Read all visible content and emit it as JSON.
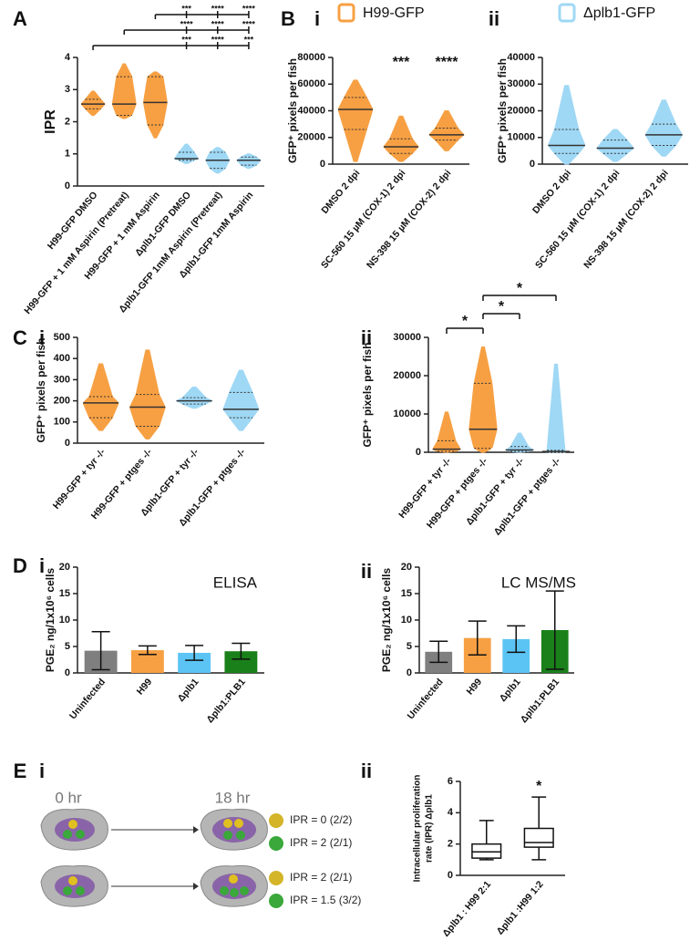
{
  "panel_labels": [
    "A",
    "B",
    "i",
    "ii",
    "C",
    "i",
    "ii",
    "D",
    "i",
    "ii",
    "E",
    "i",
    "ii"
  ],
  "diagram": {
    "times": [
      "0 hr",
      "18 hr"
    ],
    "outcomes": [
      "IPR = 0 (2/2)",
      "IPR = 2 (2/1)",
      "IPR = 2 (2/1)",
      "IPR = 1.5 (3/2)"
    ]
  },
  "chart_data": [
    {
      "type": "violin",
      "ylabel": "IPR",
      "categories": [
        "H99-GFP DMSO",
        "H99-GFP + 1 mM Aspirin (Pretreat)",
        "H99-GFP + 1 mM Aspirin",
        "Δplb1-GFP DMSO",
        "Δplb1-GFP 1mM Aspirin (Pretreat)",
        "Δplb1-GFP 1mM Aspirin"
      ],
      "colors": [
        "#f7a043",
        "#f7a043",
        "#f7a043",
        "#9fd8f5",
        "#9fd8f5",
        "#9fd8f5"
      ],
      "min": [
        2.2,
        2.1,
        1.5,
        0.7,
        0.4,
        0.55
      ],
      "q1": [
        2.4,
        2.2,
        1.9,
        0.8,
        0.55,
        0.65
      ],
      "median": [
        2.55,
        2.55,
        2.6,
        0.85,
        0.8,
        0.8
      ],
      "q3": [
        2.7,
        3.4,
        3.4,
        1.05,
        1.05,
        0.9
      ],
      "max": [
        2.95,
        3.8,
        3.55,
        1.3,
        1.2,
        1.0
      ],
      "ylim": [
        0,
        4
      ],
      "yticks": [
        0,
        1,
        2,
        3,
        4
      ],
      "annotations": [
        [
          "***",
          "****",
          "****"
        ],
        [
          "****",
          "****",
          "****"
        ],
        [
          "***",
          "****",
          "***"
        ]
      ]
    },
    {
      "type": "violin",
      "title": "H99-GFP",
      "ylabel": "GFP⁺ pixels per fish",
      "categories": [
        "DMSO 2 dpi",
        "SC-560 15 µM (COX-1) 2 dpi",
        "NS-398 15 µM (COX-2) 2 dpi"
      ],
      "colors": [
        "#f7a043",
        "#f7a043",
        "#f7a043"
      ],
      "min": [
        2000,
        2000,
        10000
      ],
      "q1": [
        26000,
        8000,
        18000
      ],
      "median": [
        41000,
        13000,
        22000
      ],
      "q3": [
        50000,
        19000,
        27000
      ],
      "max": [
        63000,
        36000,
        40000
      ],
      "ylim": [
        0,
        80000
      ],
      "yticks": [
        0,
        20000,
        40000,
        60000,
        80000
      ],
      "annotations": [
        null,
        "***",
        "****"
      ]
    },
    {
      "type": "violin",
      "title": "Δplb1-GFP",
      "ylabel": "GFP⁺ pixels per fish",
      "categories": [
        "DMSO 2 dpi",
        "SC-560 15 µM (COX-1) 2 dpi",
        "NS-398 15 µM (COX-2) 2 dpi"
      ],
      "colors": [
        "#9fd8f5",
        "#9fd8f5",
        "#9fd8f5"
      ],
      "min": [
        0,
        1000,
        3000
      ],
      "q1": [
        4000,
        4000,
        7000
      ],
      "median": [
        7000,
        6000,
        11000
      ],
      "q3": [
        13000,
        9000,
        15000
      ],
      "max": [
        29500,
        13000,
        24000
      ],
      "ylim": [
        0,
        40000
      ],
      "yticks": [
        0,
        10000,
        20000,
        30000,
        40000
      ]
    },
    {
      "type": "violin",
      "ylabel": "GFP⁺ pixels per fish",
      "categories": [
        "H99-GFP + tyr -/-",
        "H99-GFP + ptges -/-",
        "Δplb1-GFP + tyr -/-",
        "Δplb1-GFP +  ptges -/-"
      ],
      "colors": [
        "#f7a043",
        "#f7a043",
        "#9fd8f5",
        "#9fd8f5"
      ],
      "min": [
        60,
        20,
        165,
        60
      ],
      "q1": [
        120,
        80,
        185,
        120
      ],
      "median": [
        190,
        170,
        200,
        160
      ],
      "q3": [
        220,
        230,
        215,
        240
      ],
      "max": [
        375,
        440,
        265,
        345
      ],
      "ylim": [
        0,
        500
      ],
      "yticks": [
        0,
        100,
        200,
        300,
        400,
        500
      ]
    },
    {
      "type": "violin",
      "ylabel": "GFP⁺ pixels per fish",
      "categories": [
        "H99-GFP + tyr -/-",
        "H99-GFP + ptges -/-",
        "Δplb1-GFP + tyr -/-",
        "Δplb1-GFP + ptges -/-"
      ],
      "colors": [
        "#f7a043",
        "#f7a043",
        "#9fd8f5",
        "#9fd8f5"
      ],
      "min": [
        0,
        0,
        0,
        0
      ],
      "q1": [
        200,
        1000,
        200,
        0
      ],
      "median": [
        800,
        6000,
        600,
        200
      ],
      "q3": [
        3000,
        18000,
        1500,
        500
      ],
      "max": [
        10500,
        27500,
        5000,
        23000
      ],
      "ylim": [
        0,
        30000
      ],
      "yticks": [
        0,
        10000,
        20000,
        30000
      ],
      "annotations": [
        "*",
        "*",
        "*"
      ]
    },
    {
      "type": "bar",
      "title": "ELISA",
      "ylabel": "PGE₂ ng/1x10⁶ cells",
      "categories": [
        "Uninfected",
        "H99",
        "Δplb1",
        "Δplb1:PLB1"
      ],
      "colors": [
        "#7f7f7f",
        "#f7a043",
        "#5bc4f5",
        "#1a801a"
      ],
      "values": [
        4.2,
        4.3,
        3.8,
        4.1
      ],
      "errors": [
        3.6,
        0.8,
        1.4,
        1.5
      ],
      "ylim": [
        0,
        20
      ],
      "yticks": [
        0,
        5,
        10,
        15,
        20
      ]
    },
    {
      "type": "bar",
      "title": "LC MS/MS",
      "ylabel": "PGE₂ ng/1x10⁶ cells",
      "categories": [
        "Uninfected",
        "H99",
        "Δplb1",
        "Δplb1:PLB1"
      ],
      "colors": [
        "#7f7f7f",
        "#f7a043",
        "#5bc4f5",
        "#1a801a"
      ],
      "values": [
        4.0,
        6.6,
        6.4,
        8.1
      ],
      "errors": [
        2.0,
        3.2,
        2.5,
        7.4
      ],
      "ylim": [
        0,
        20
      ],
      "yticks": [
        0,
        5,
        10,
        15,
        20
      ]
    },
    {
      "type": "box",
      "ylabel": [
        "Intracellular proliferation",
        "rate (IPR) Δplb1"
      ],
      "categories": [
        "Δplb1 : H99 2:1",
        "Δplb1 :H99 1:2"
      ],
      "colors": [
        "#ffffff",
        "#ffffff"
      ],
      "min": [
        1.0,
        1.0
      ],
      "q1": [
        1.1,
        1.8
      ],
      "median": [
        1.5,
        2.1
      ],
      "q3": [
        2.0,
        3.0
      ],
      "max": [
        3.5,
        5.0
      ],
      "ylim": [
        0,
        6
      ],
      "yticks": [
        0,
        2,
        4,
        6
      ],
      "annotations": [
        null,
        "*"
      ]
    }
  ]
}
